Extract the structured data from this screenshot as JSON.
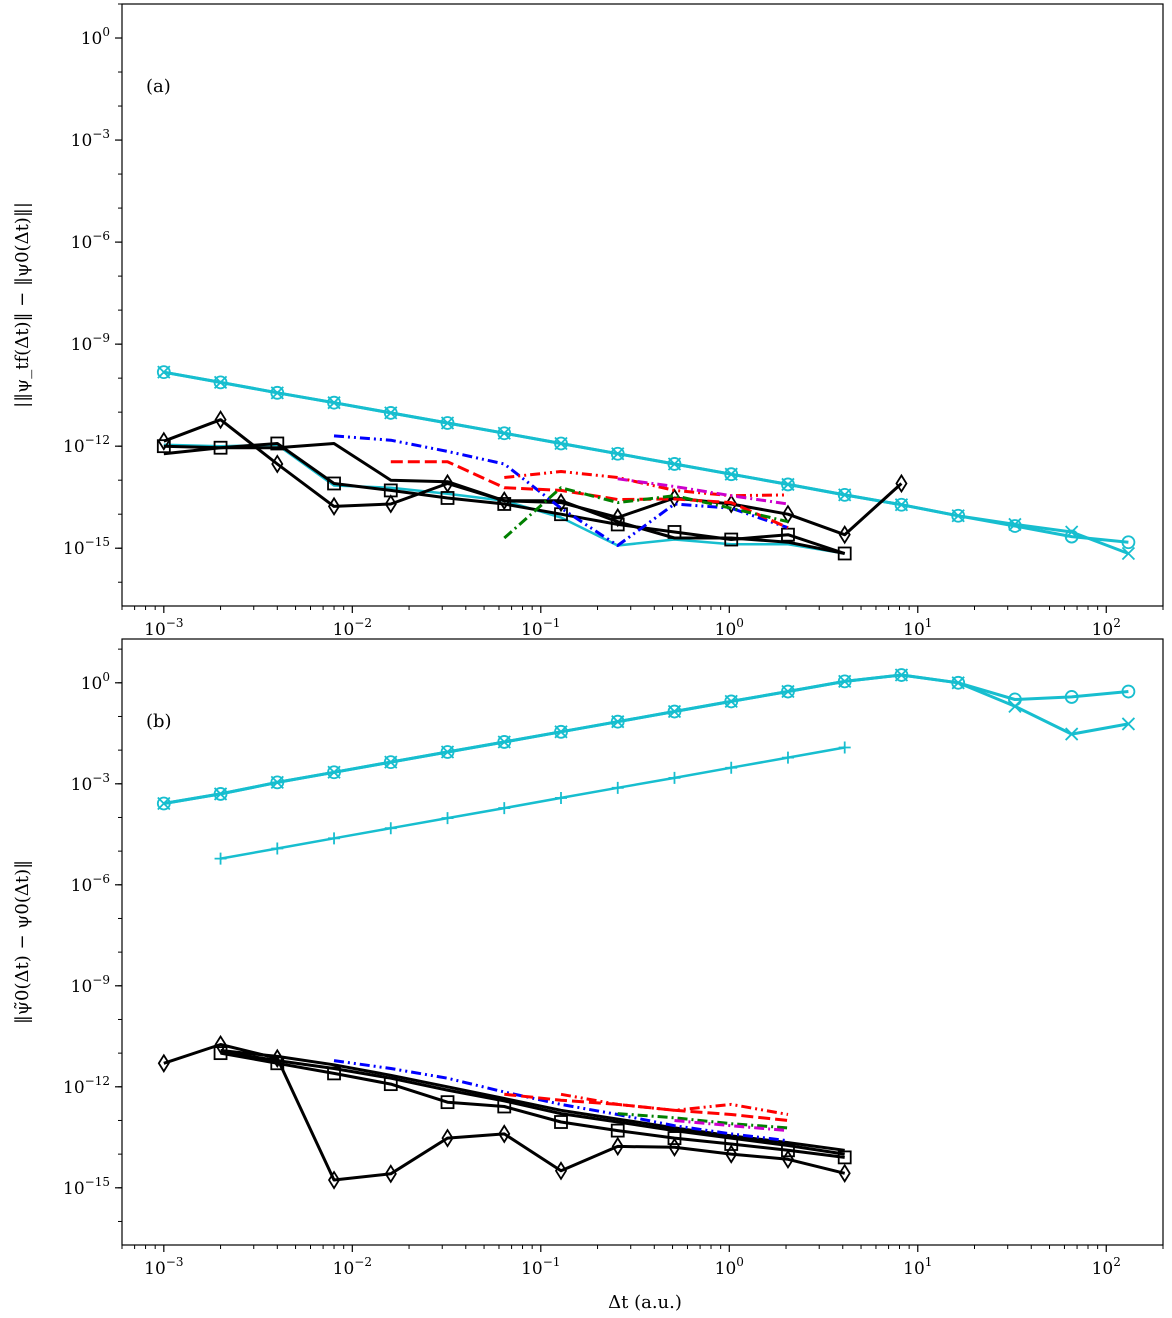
{
  "figure": {
    "xlabel": "Δt (a.u.)"
  },
  "chart_data": [
    {
      "type": "line",
      "panel_label": "(a)",
      "ylabel": "|‖ψ_tf(Δt)‖ − ‖ψ0(Δt)‖|",
      "xscale": "log",
      "yscale": "log",
      "xlim": [
        0.0006,
        200
      ],
      "ylim": [
        2e-17,
        10
      ],
      "xticks": [
        {
          "v": 0.001,
          "exp": "-3"
        },
        {
          "v": 0.01,
          "exp": "-2"
        },
        {
          "v": 0.1,
          "exp": "-1"
        },
        {
          "v": 1,
          "exp": "0"
        },
        {
          "v": 10,
          "exp": "1"
        },
        {
          "v": 100,
          "exp": "2"
        }
      ],
      "yticks": [
        {
          "v": 1,
          "exp": "0"
        },
        {
          "v": 0.001,
          "exp": "-3"
        },
        {
          "v": 1e-06,
          "exp": "-6"
        },
        {
          "v": 1e-09,
          "exp": "-9"
        },
        {
          "v": 1e-12,
          "exp": "-12"
        },
        {
          "v": 1e-15,
          "exp": "-15"
        }
      ],
      "series": [
        {
          "color": "#17becf",
          "width": 3,
          "dash": "",
          "marker": "circle",
          "x": [
            0.001,
            0.002,
            0.004,
            0.008,
            0.016,
            0.032,
            0.064,
            0.128,
            0.256,
            0.512,
            1.024,
            2.048,
            4.096,
            8.192,
            16.384,
            32.768,
            65.536,
            131.072
          ],
          "y": [
            1.5e-10,
            7.5e-11,
            3.7e-11,
            1.9e-11,
            9.5e-12,
            4.8e-12,
            2.4e-12,
            1.2e-12,
            6e-13,
            3e-13,
            1.5e-13,
            7.5e-14,
            3.7e-14,
            1.9e-14,
            9e-15,
            4.5e-15,
            2.2e-15,
            1.5e-15
          ]
        },
        {
          "color": "#17becf",
          "width": 3,
          "dash": "",
          "marker": "x",
          "x": [
            0.001,
            0.002,
            0.004,
            0.008,
            0.016,
            0.032,
            0.064,
            0.128,
            0.256,
            0.512,
            1.024,
            2.048,
            4.096,
            8.192,
            16.384,
            32.768,
            65.536,
            131.072
          ],
          "y": [
            1.5e-10,
            7.5e-11,
            3.7e-11,
            1.9e-11,
            9.5e-12,
            4.8e-12,
            2.4e-12,
            1.2e-12,
            6e-13,
            3e-13,
            1.5e-13,
            7.5e-14,
            3.7e-14,
            1.9e-14,
            9e-15,
            5e-15,
            3e-15,
            7e-16
          ]
        },
        {
          "color": "#17becf",
          "width": 2.5,
          "dash": "",
          "marker": "none",
          "x": [
            0.001,
            0.002,
            0.004,
            0.008,
            0.016,
            0.032,
            0.064,
            0.128,
            0.256,
            0.512,
            1.024,
            2.048,
            4.096
          ],
          "y": [
            1.1e-12,
            1e-12,
            1.1e-12,
            7e-14,
            6e-14,
            4e-14,
            2.5e-14,
            8e-15,
            1.2e-15,
            1.8e-15,
            1.3e-15,
            1.3e-15,
            7e-16
          ]
        },
        {
          "color": "#000000",
          "width": 3,
          "dash": "",
          "marker": "diamond",
          "x": [
            0.001,
            0.002,
            0.004,
            0.008,
            0.016,
            0.032,
            0.064,
            0.128,
            0.256,
            0.512,
            1.024,
            2.048,
            4.096,
            8.192
          ],
          "y": [
            1.4e-12,
            6e-12,
            3e-13,
            1.7e-14,
            2e-14,
            8e-14,
            2.5e-14,
            2.2e-14,
            8e-15,
            3e-14,
            2e-14,
            1e-14,
            2.5e-15,
            8e-14
          ]
        },
        {
          "color": "#000000",
          "width": 3,
          "dash": "",
          "marker": "square",
          "x": [
            0.001,
            0.002,
            0.004,
            0.008,
            0.016,
            0.032,
            0.064,
            0.128,
            0.256,
            0.512,
            1.024,
            2.048,
            4.096
          ],
          "y": [
            1e-12,
            9e-13,
            1.2e-12,
            8e-14,
            5e-14,
            3e-14,
            2e-14,
            1e-14,
            5e-15,
            3e-15,
            1.8e-15,
            2.5e-15,
            7e-16
          ]
        },
        {
          "color": "#000000",
          "width": 3,
          "dash": "",
          "marker": "none",
          "x": [
            0.001,
            0.002,
            0.004,
            0.008,
            0.016,
            0.032,
            0.064,
            0.128,
            0.256,
            0.512,
            1.024,
            2.048,
            4.096
          ],
          "y": [
            6e-13,
            9e-13,
            9e-13,
            1.2e-12,
            1e-13,
            9e-14,
            2.5e-14,
            2.5e-14,
            6e-15,
            2e-15,
            2e-15,
            1.5e-15,
            7e-16
          ]
        },
        {
          "color": "#0000ff",
          "width": 3,
          "dash": "10,4,2,4,2,4",
          "marker": "none",
          "x": [
            0.008,
            0.016,
            0.032,
            0.064,
            0.128,
            0.256,
            0.512,
            1.024,
            2.048
          ],
          "y": [
            2e-12,
            1.5e-12,
            7e-13,
            3e-13,
            1.5e-14,
            1.2e-15,
            2e-14,
            1.5e-14,
            4e-15
          ]
        },
        {
          "color": "#ff0000",
          "width": 3,
          "dash": "12,5",
          "marker": "none",
          "x": [
            0.016,
            0.032,
            0.064,
            0.128,
            0.256,
            0.512,
            1.024,
            2.048
          ],
          "y": [
            3.5e-13,
            3.5e-13,
            6e-14,
            5e-14,
            2.7e-14,
            2.8e-14,
            2.2e-14,
            4e-15
          ]
        },
        {
          "color": "#ff0000",
          "width": 3,
          "dash": "10,4,2,4,2,4",
          "marker": "none",
          "x": [
            0.064,
            0.128,
            0.256,
            0.512,
            1.024,
            2.048
          ],
          "y": [
            1.2e-13,
            1.8e-13,
            1.2e-13,
            5e-14,
            3.5e-14,
            3.7e-14
          ]
        },
        {
          "color": "#008000",
          "width": 3,
          "dash": "10,4,2,4",
          "marker": "none",
          "x": [
            0.064,
            0.128,
            0.256,
            0.512,
            1.024,
            2.048
          ],
          "y": [
            2e-15,
            6e-14,
            2.2e-14,
            3.5e-14,
            1.5e-14,
            6e-15
          ]
        },
        {
          "color": "#cc00cc",
          "width": 3,
          "dash": "10,4,2,4",
          "marker": "none",
          "x": [
            0.256,
            0.512,
            1.024,
            2.048
          ],
          "y": [
            1.1e-13,
            6.5e-14,
            3.5e-14,
            2e-14
          ]
        }
      ]
    },
    {
      "type": "line",
      "panel_label": "(b)",
      "ylabel": "‖ψ̃0(Δt) − ψ0(Δt)‖",
      "xscale": "log",
      "yscale": "log",
      "xlim": [
        0.0006,
        200
      ],
      "ylim": [
        2e-17,
        20
      ],
      "xticks": [
        {
          "v": 0.001,
          "exp": "-3"
        },
        {
          "v": 0.01,
          "exp": "-2"
        },
        {
          "v": 0.1,
          "exp": "-1"
        },
        {
          "v": 1,
          "exp": "0"
        },
        {
          "v": 10,
          "exp": "1"
        },
        {
          "v": 100,
          "exp": "2"
        }
      ],
      "yticks": [
        {
          "v": 1,
          "exp": "0"
        },
        {
          "v": 0.001,
          "exp": "-3"
        },
        {
          "v": 1e-06,
          "exp": "-6"
        },
        {
          "v": 1e-09,
          "exp": "-9"
        },
        {
          "v": 1e-12,
          "exp": "-12"
        },
        {
          "v": 1e-15,
          "exp": "-15"
        }
      ],
      "series": [
        {
          "color": "#17becf",
          "width": 3,
          "dash": "",
          "marker": "circle",
          "x": [
            0.001,
            0.002,
            0.004,
            0.008,
            0.016,
            0.032,
            0.064,
            0.128,
            0.256,
            0.512,
            1.024,
            2.048,
            4.096,
            8.192,
            16.384,
            32.768,
            65.536,
            131.072
          ],
          "y": [
            0.00026,
            0.0005,
            0.0011,
            0.0022,
            0.0044,
            0.0088,
            0.0175,
            0.035,
            0.07,
            0.14,
            0.28,
            0.55,
            1.1,
            1.7,
            1,
            0.32,
            0.38,
            0.55
          ]
        },
        {
          "color": "#17becf",
          "width": 3,
          "dash": "",
          "marker": "x",
          "x": [
            0.001,
            0.002,
            0.004,
            0.008,
            0.016,
            0.032,
            0.064,
            0.128,
            0.256,
            0.512,
            1.024,
            2.048,
            4.096,
            8.192,
            16.384,
            32.768,
            65.536,
            131.072
          ],
          "y": [
            0.00026,
            0.0005,
            0.0011,
            0.0022,
            0.0044,
            0.0088,
            0.0175,
            0.035,
            0.07,
            0.14,
            0.28,
            0.55,
            1.1,
            1.7,
            1,
            0.2,
            0.03,
            0.06
          ]
        },
        {
          "color": "#17becf",
          "width": 2.5,
          "dash": "",
          "marker": "plus",
          "x": [
            0.002,
            0.004,
            0.008,
            0.016,
            0.032,
            0.064,
            0.128,
            0.256,
            0.512,
            1.024,
            2.048,
            4.096
          ],
          "y": [
            6e-06,
            1.2e-05,
            2.4e-05,
            4.8e-05,
            9.6e-05,
            0.00019,
            0.00038,
            0.00076,
            0.0015,
            0.003,
            0.006,
            0.012
          ]
        },
        {
          "color": "#000000",
          "width": 3,
          "dash": "",
          "marker": "diamond",
          "x": [
            0.001,
            0.002,
            0.004,
            0.008,
            0.016,
            0.032,
            0.064,
            0.128,
            0.256,
            0.512,
            1.024,
            2.048,
            4.096
          ],
          "y": [
            5e-12,
            1.8e-11,
            7e-12,
            1.7e-15,
            2.6e-15,
            3e-14,
            4e-14,
            3.2e-15,
            1.7e-14,
            1.6e-14,
            1e-14,
            7e-15,
            2.7e-15
          ]
        },
        {
          "color": "#000000",
          "width": 3,
          "dash": "",
          "marker": "square",
          "x": [
            0.002,
            0.004,
            0.008,
            0.016,
            0.032,
            0.064,
            0.128,
            0.256,
            0.512,
            1.024,
            2.048,
            4.096
          ],
          "y": [
            1e-11,
            5e-12,
            2.5e-12,
            1.2e-12,
            3.5e-13,
            2.6e-13,
            9e-14,
            5e-14,
            3e-14,
            2e-14,
            1.3e-14,
            8e-15
          ]
        },
        {
          "color": "#000000",
          "width": 3,
          "dash": "",
          "marker": "none",
          "x": [
            0.002,
            0.004,
            0.008,
            0.016,
            0.032,
            0.064,
            0.128,
            0.256,
            0.512,
            1.024,
            2.048,
            4.096
          ],
          "y": [
            1.2e-11,
            8e-12,
            4.5e-12,
            2.2e-12,
            1e-12,
            4.5e-13,
            2e-13,
            1.1e-13,
            6e-14,
            3.5e-14,
            2.2e-14,
            1.3e-14
          ]
        },
        {
          "color": "#000000",
          "width": 3,
          "dash": "",
          "marker": "none",
          "x": [
            0.002,
            0.004,
            0.008,
            0.016,
            0.032,
            0.064,
            0.128,
            0.256,
            0.512,
            1.024,
            2.048,
            4.096
          ],
          "y": [
            1.1e-11,
            6e-12,
            3.5e-12,
            1.8e-12,
            8e-13,
            3.8e-13,
            1.6e-13,
            9e-14,
            5e-14,
            3e-14,
            1.8e-14,
            1e-14
          ]
        },
        {
          "color": "#0000ff",
          "width": 3,
          "dash": "10,4,2,4,2,4",
          "marker": "none",
          "x": [
            0.008,
            0.016,
            0.032,
            0.064,
            0.128,
            0.256,
            0.512,
            1.024,
            2.048
          ],
          "y": [
            6e-12,
            3.5e-12,
            1.8e-12,
            7e-13,
            3e-13,
            1.5e-13,
            7e-14,
            4e-14,
            2.5e-14
          ]
        },
        {
          "color": "#ff0000",
          "width": 3,
          "dash": "12,5",
          "marker": "none",
          "x": [
            0.064,
            0.128,
            0.256,
            0.512,
            1.024,
            2.048
          ],
          "y": [
            6e-13,
            4e-13,
            3e-13,
            2e-13,
            1.5e-13,
            1e-13
          ]
        },
        {
          "color": "#ff0000",
          "width": 3,
          "dash": "10,4,2,4,2,4",
          "marker": "none",
          "x": [
            0.128,
            0.256,
            0.512,
            1.024,
            2.048
          ],
          "y": [
            6e-13,
            3e-13,
            2e-13,
            3e-13,
            1.5e-13
          ]
        },
        {
          "color": "#008000",
          "width": 3,
          "dash": "10,4,2,4",
          "marker": "none",
          "x": [
            0.256,
            0.512,
            1.024,
            2.048
          ],
          "y": [
            1.6e-13,
            1.2e-13,
            8e-14,
            6e-14
          ]
        },
        {
          "color": "#cc00cc",
          "width": 3,
          "dash": "10,4,2,4",
          "marker": "none",
          "x": [
            0.512,
            1.024,
            2.048
          ],
          "y": [
            1e-13,
            7e-14,
            5e-14
          ]
        }
      ]
    }
  ]
}
